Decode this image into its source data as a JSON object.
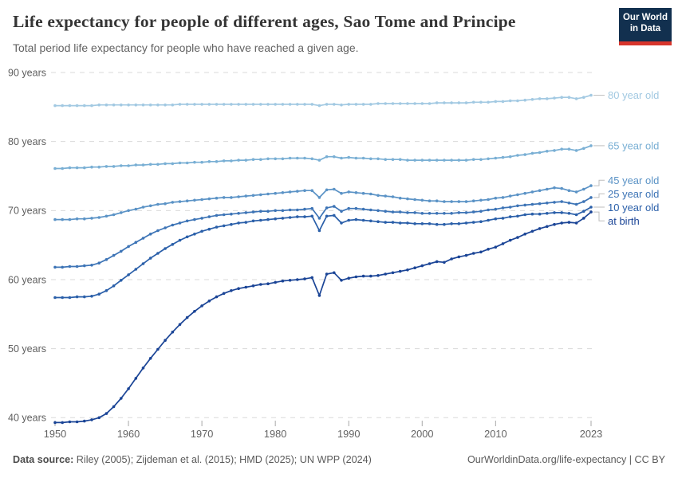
{
  "header": {
    "title": "Life expectancy for people of different ages, Sao Tome and Principe",
    "subtitle": "Total period life expectancy for people who have reached a given age.",
    "logo_line1": "Our World",
    "logo_line2": "in Data"
  },
  "footer": {
    "source_label": "Data source:",
    "source_text": " Riley (2005); Zijdeman et al. (2015); HMD (2025); UN WPP (2024)",
    "rights": "OurWorldinData.org/life-expectancy | CC BY"
  },
  "chart_data": {
    "type": "line",
    "title": "Life expectancy for people of different ages, Sao Tome and Principe",
    "xlabel": "",
    "ylabel": "years",
    "xlim": [
      1950,
      2023
    ],
    "ylim": [
      38.5,
      91.5
    ],
    "grid": "horizontal-dashed",
    "legend_position": "right-of-line-ends",
    "years": [
      1950,
      1951,
      1952,
      1953,
      1954,
      1955,
      1956,
      1957,
      1958,
      1959,
      1960,
      1961,
      1962,
      1963,
      1964,
      1965,
      1966,
      1967,
      1968,
      1969,
      1970,
      1971,
      1972,
      1973,
      1974,
      1975,
      1976,
      1977,
      1978,
      1979,
      1980,
      1981,
      1982,
      1983,
      1984,
      1985,
      1986,
      1987,
      1988,
      1989,
      1990,
      1991,
      1992,
      1993,
      1994,
      1995,
      1996,
      1997,
      1998,
      1999,
      2000,
      2001,
      2002,
      2003,
      2004,
      2005,
      2006,
      2007,
      2008,
      2009,
      2010,
      2011,
      2012,
      2013,
      2014,
      2015,
      2016,
      2017,
      2018,
      2019,
      2020,
      2021,
      2022,
      2023
    ],
    "yticks": [
      {
        "v": 90,
        "label": "90 years"
      },
      {
        "v": 80,
        "label": "80 years"
      },
      {
        "v": 70,
        "label": "70 years"
      },
      {
        "v": 60,
        "label": "60 years"
      },
      {
        "v": 50,
        "label": "50 years"
      },
      {
        "v": 40,
        "label": "40 years"
      }
    ],
    "xticks": [
      {
        "v": 1950,
        "label": "1950"
      },
      {
        "v": 1960,
        "label": "1960"
      },
      {
        "v": 1970,
        "label": "1970"
      },
      {
        "v": 1980,
        "label": "1980"
      },
      {
        "v": 1990,
        "label": "1990"
      },
      {
        "v": 2000,
        "label": "2000"
      },
      {
        "v": 2010,
        "label": "2010"
      },
      {
        "v": 2023,
        "label": "2023"
      }
    ],
    "series": [
      {
        "name": "80 year old",
        "color": "#a2c9e2",
        "values": [
          85.2,
          85.2,
          85.2,
          85.2,
          85.2,
          85.2,
          85.3,
          85.3,
          85.3,
          85.3,
          85.3,
          85.3,
          85.3,
          85.3,
          85.3,
          85.3,
          85.3,
          85.4,
          85.4,
          85.4,
          85.4,
          85.4,
          85.4,
          85.4,
          85.4,
          85.4,
          85.4,
          85.4,
          85.4,
          85.4,
          85.4,
          85.4,
          85.4,
          85.4,
          85.4,
          85.4,
          85.2,
          85.4,
          85.4,
          85.3,
          85.4,
          85.4,
          85.4,
          85.4,
          85.5,
          85.5,
          85.5,
          85.5,
          85.5,
          85.5,
          85.5,
          85.5,
          85.6,
          85.6,
          85.6,
          85.6,
          85.6,
          85.7,
          85.7,
          85.7,
          85.8,
          85.8,
          85.9,
          85.9,
          86.0,
          86.1,
          86.2,
          86.2,
          86.3,
          86.4,
          86.4,
          86.2,
          86.4,
          86.7
        ]
      },
      {
        "name": "65 year old",
        "color": "#79afd4",
        "values": [
          76.1,
          76.1,
          76.2,
          76.2,
          76.2,
          76.3,
          76.3,
          76.4,
          76.4,
          76.5,
          76.5,
          76.6,
          76.6,
          76.7,
          76.7,
          76.8,
          76.8,
          76.9,
          76.9,
          77.0,
          77.0,
          77.1,
          77.1,
          77.2,
          77.2,
          77.3,
          77.3,
          77.4,
          77.4,
          77.5,
          77.5,
          77.5,
          77.6,
          77.6,
          77.6,
          77.5,
          77.3,
          77.8,
          77.8,
          77.6,
          77.7,
          77.6,
          77.6,
          77.5,
          77.5,
          77.4,
          77.4,
          77.4,
          77.3,
          77.3,
          77.3,
          77.3,
          77.3,
          77.3,
          77.3,
          77.3,
          77.3,
          77.4,
          77.4,
          77.5,
          77.6,
          77.7,
          77.8,
          78.0,
          78.1,
          78.3,
          78.4,
          78.6,
          78.7,
          78.9,
          78.9,
          78.7,
          79.0,
          79.4
        ]
      },
      {
        "name": "45 year old",
        "color": "#5b93c6",
        "values": [
          68.7,
          68.7,
          68.7,
          68.8,
          68.8,
          68.9,
          69.0,
          69.2,
          69.4,
          69.7,
          70.0,
          70.2,
          70.5,
          70.7,
          70.9,
          71.0,
          71.2,
          71.3,
          71.4,
          71.5,
          71.6,
          71.7,
          71.8,
          71.9,
          71.9,
          72.0,
          72.1,
          72.2,
          72.3,
          72.4,
          72.5,
          72.6,
          72.7,
          72.8,
          72.9,
          72.9,
          71.9,
          73.0,
          73.1,
          72.5,
          72.7,
          72.6,
          72.5,
          72.4,
          72.2,
          72.1,
          72.0,
          71.8,
          71.7,
          71.6,
          71.5,
          71.4,
          71.4,
          71.3,
          71.3,
          71.3,
          71.3,
          71.4,
          71.5,
          71.6,
          71.8,
          71.9,
          72.1,
          72.3,
          72.5,
          72.7,
          72.9,
          73.1,
          73.3,
          73.2,
          72.9,
          72.7,
          73.1,
          73.6
        ]
      },
      {
        "name": "25 year old",
        "color": "#3d74b6",
        "values": [
          61.8,
          61.8,
          61.9,
          61.9,
          62.0,
          62.1,
          62.4,
          62.9,
          63.5,
          64.1,
          64.8,
          65.4,
          66.0,
          66.6,
          67.1,
          67.5,
          67.9,
          68.2,
          68.5,
          68.7,
          68.9,
          69.1,
          69.3,
          69.4,
          69.5,
          69.6,
          69.7,
          69.8,
          69.9,
          69.9,
          70.0,
          70.0,
          70.1,
          70.1,
          70.2,
          70.3,
          68.9,
          70.4,
          70.6,
          69.9,
          70.3,
          70.3,
          70.2,
          70.1,
          70.0,
          69.9,
          69.8,
          69.8,
          69.7,
          69.7,
          69.6,
          69.6,
          69.6,
          69.6,
          69.6,
          69.7,
          69.7,
          69.8,
          69.9,
          70.1,
          70.2,
          70.4,
          70.5,
          70.7,
          70.8,
          70.9,
          71.0,
          71.1,
          71.2,
          71.3,
          71.1,
          70.9,
          71.3,
          71.9
        ]
      },
      {
        "name": "10 year old",
        "color": "#2a5fa9",
        "values": [
          57.4,
          57.4,
          57.4,
          57.5,
          57.5,
          57.6,
          57.9,
          58.4,
          59.1,
          59.9,
          60.7,
          61.5,
          62.3,
          63.1,
          63.8,
          64.5,
          65.1,
          65.7,
          66.2,
          66.6,
          67.0,
          67.3,
          67.6,
          67.8,
          68.0,
          68.2,
          68.3,
          68.5,
          68.6,
          68.7,
          68.8,
          68.9,
          69.0,
          69.1,
          69.1,
          69.2,
          67.1,
          69.2,
          69.3,
          68.2,
          68.6,
          68.7,
          68.6,
          68.5,
          68.4,
          68.3,
          68.3,
          68.2,
          68.2,
          68.1,
          68.1,
          68.1,
          68.0,
          68.0,
          68.1,
          68.1,
          68.2,
          68.3,
          68.4,
          68.6,
          68.8,
          68.9,
          69.1,
          69.2,
          69.4,
          69.5,
          69.5,
          69.6,
          69.7,
          69.7,
          69.6,
          69.4,
          69.9,
          70.5
        ]
      },
      {
        "name": "at birth",
        "color": "#1a4496",
        "values": [
          39.3,
          39.3,
          39.4,
          39.4,
          39.5,
          39.7,
          40.0,
          40.6,
          41.6,
          42.8,
          44.2,
          45.7,
          47.2,
          48.6,
          49.9,
          51.2,
          52.4,
          53.5,
          54.5,
          55.4,
          56.2,
          56.9,
          57.5,
          58.0,
          58.4,
          58.7,
          58.9,
          59.1,
          59.3,
          59.4,
          59.6,
          59.8,
          59.9,
          60.0,
          60.1,
          60.3,
          57.7,
          60.8,
          61.0,
          59.9,
          60.2,
          60.4,
          60.5,
          60.5,
          60.6,
          60.8,
          61.0,
          61.2,
          61.4,
          61.7,
          62.0,
          62.3,
          62.6,
          62.5,
          63.0,
          63.3,
          63.5,
          63.8,
          64.0,
          64.4,
          64.7,
          65.2,
          65.7,
          66.1,
          66.6,
          67.0,
          67.4,
          67.7,
          68.0,
          68.2,
          68.3,
          68.2,
          68.9,
          69.8
        ]
      }
    ]
  }
}
